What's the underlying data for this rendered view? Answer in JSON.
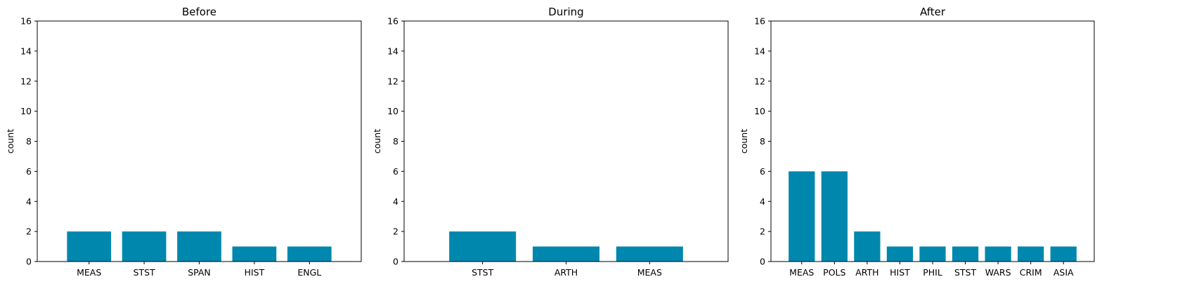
{
  "bar_color": "#0087ae",
  "chart_data": [
    {
      "type": "bar",
      "title": "Before",
      "xlabel": "",
      "ylabel": "count",
      "ylim": [
        0,
        16
      ],
      "yticks": [
        0,
        2,
        4,
        6,
        8,
        10,
        12,
        14,
        16
      ],
      "categories": [
        "MEAS",
        "STST",
        "SPAN",
        "HIST",
        "ENGL"
      ],
      "values": [
        2,
        2,
        2,
        1,
        1
      ]
    },
    {
      "type": "bar",
      "title": "During",
      "xlabel": "",
      "ylabel": "count",
      "ylim": [
        0,
        16
      ],
      "yticks": [
        0,
        2,
        4,
        6,
        8,
        10,
        12,
        14,
        16
      ],
      "categories": [
        "STST",
        "ARTH",
        "MEAS"
      ],
      "values": [
        2,
        1,
        1
      ]
    },
    {
      "type": "bar",
      "title": "After",
      "xlabel": "",
      "ylabel": "count",
      "ylim": [
        0,
        16
      ],
      "yticks": [
        0,
        2,
        4,
        6,
        8,
        10,
        12,
        14,
        16
      ],
      "categories": [
        "MEAS",
        "POLS",
        "ARTH",
        "HIST",
        "PHIL",
        "STST",
        "WARS",
        "CRIM",
        "ASIA"
      ],
      "values": [
        6,
        6,
        2,
        1,
        1,
        1,
        1,
        1,
        1
      ]
    }
  ]
}
